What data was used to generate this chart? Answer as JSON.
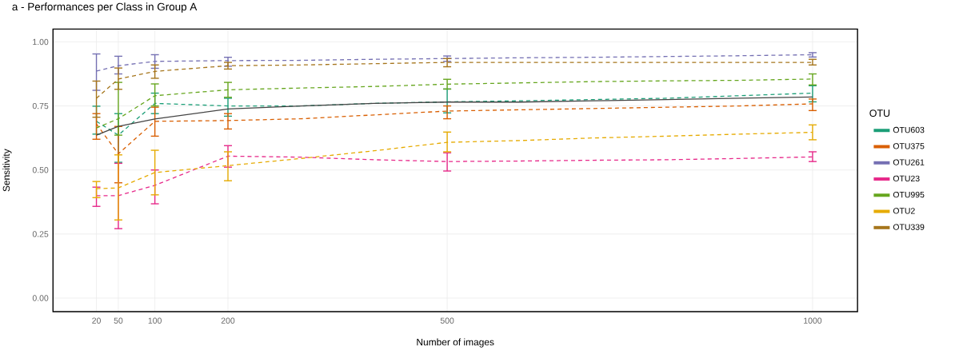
{
  "chart_data": {
    "type": "line",
    "title": "a - Performances per Class in Group A",
    "xlabel": "Number of images",
    "ylabel": "Sensitivity",
    "legend_title": "OTU",
    "x": [
      20,
      50,
      100,
      200,
      300,
      400,
      500,
      600,
      700,
      800,
      900,
      1000
    ],
    "series": [
      {
        "name": "OTU603",
        "color": "#1b9e77",
        "line_style": "dashed",
        "values": [
          0.69,
          0.636,
          0.76,
          0.75,
          0.75,
          0.76,
          0.766,
          0.77,
          0.775,
          0.78,
          0.79,
          0.8
        ],
        "errors": [
          [
            0.64,
            0.749
          ],
          [
            0.53,
            0.72
          ],
          [
            0.72,
            0.8
          ],
          [
            0.71,
            0.78
          ],
          null,
          null,
          [
            0.723,
            0.816
          ],
          null,
          null,
          null,
          null,
          [
            0.766,
            0.829
          ]
        ]
      },
      {
        "name": "OTU375",
        "color": "#d95f02",
        "line_style": "dashed",
        "values": [
          0.68,
          0.563,
          0.69,
          0.693,
          0.7,
          0.715,
          0.73,
          0.735,
          0.74,
          0.745,
          0.75,
          0.758
        ],
        "errors": [
          [
            0.62,
            0.72
          ],
          [
            0.45,
            0.67
          ],
          [
            0.632,
            0.745
          ],
          [
            0.66,
            0.72
          ],
          null,
          null,
          [
            0.7,
            0.75
          ],
          null,
          null,
          null,
          null,
          [
            0.732,
            0.777
          ]
        ]
      },
      {
        "name": "OTU261",
        "color": "#7570b3",
        "line_style": "dashed",
        "values": [
          0.886,
          0.907,
          0.924,
          0.927,
          0.928,
          0.932,
          0.935,
          0.938,
          0.94,
          0.943,
          0.946,
          0.95
        ],
        "errors": [
          [
            0.811,
            0.953
          ],
          [
            0.875,
            0.944
          ],
          [
            0.897,
            0.95
          ],
          [
            0.905,
            0.94
          ],
          null,
          null,
          [
            0.924,
            0.945
          ],
          null,
          null,
          null,
          null,
          [
            0.941,
            0.958
          ]
        ]
      },
      {
        "name": "OTU23",
        "color": "#e7298a",
        "line_style": "dashed",
        "values": [
          0.4,
          0.4,
          0.44,
          0.554,
          0.55,
          0.54,
          0.533,
          0.535,
          0.538,
          0.54,
          0.545,
          0.551
        ],
        "errors": [
          [
            0.358,
            0.433
          ],
          [
            0.271,
            0.526
          ],
          [
            0.368,
            0.5
          ],
          [
            0.511,
            0.595
          ],
          null,
          null,
          [
            0.496,
            0.567
          ],
          null,
          null,
          null,
          null,
          [
            0.533,
            0.571
          ]
        ]
      },
      {
        "name": "OTU995",
        "color": "#66a61e",
        "line_style": "dashed",
        "values": [
          0.664,
          0.7,
          0.79,
          0.813,
          0.82,
          0.826,
          0.835,
          0.84,
          0.845,
          0.848,
          0.85,
          0.855
        ],
        "errors": [
          null,
          [
            0.636,
            0.842
          ],
          [
            0.75,
            0.836
          ],
          [
            0.784,
            0.842
          ],
          null,
          null,
          [
            0.816,
            0.854
          ],
          null,
          null,
          null,
          null,
          [
            0.832,
            0.875
          ]
        ]
      },
      {
        "name": "OTU2",
        "color": "#e6ab02",
        "line_style": "dashed",
        "values": [
          0.427,
          0.43,
          0.49,
          0.517,
          0.545,
          0.575,
          0.608,
          0.615,
          0.625,
          0.632,
          0.64,
          0.647
        ],
        "errors": [
          [
            0.392,
            0.455
          ],
          [
            0.305,
            0.559
          ],
          [
            0.403,
            0.577
          ],
          [
            0.458,
            0.571
          ],
          null,
          null,
          [
            0.571,
            0.648
          ],
          null,
          null,
          null,
          null,
          [
            0.618,
            0.676
          ]
        ]
      },
      {
        "name": "OTU339",
        "color": "#a6761d",
        "line_style": "dashed",
        "values": [
          0.78,
          0.855,
          0.885,
          0.907,
          0.91,
          0.915,
          0.92,
          0.92,
          0.92,
          0.92,
          0.92,
          0.92
        ],
        "errors": [
          [
            0.706,
            0.847
          ],
          [
            0.815,
            0.898
          ],
          [
            0.858,
            0.91
          ],
          [
            0.894,
            0.92
          ],
          null,
          null,
          [
            0.903,
            0.935
          ],
          null,
          null,
          null,
          null,
          [
            0.91,
            0.932
          ]
        ]
      },
      {
        "color": "#444444",
        "line_style": "solid",
        "values": [
          0.636,
          0.67,
          0.699,
          0.738,
          0.75,
          0.76,
          0.765,
          0.765,
          0.77,
          0.775,
          0.78,
          0.785
        ]
      }
    ],
    "xlim": [
      -39.4,
      1061.5
    ],
    "ylim": [
      -0.053,
      1.05
    ],
    "xticks": [
      20,
      50,
      100,
      200,
      500,
      1000
    ],
    "yticks": [
      {
        "value": 0,
        "label": "0.00"
      },
      {
        "value": 0.25,
        "label": "0.25"
      },
      {
        "value": 0.5,
        "label": "0.50"
      },
      {
        "value": 0.75,
        "label": "0.75"
      },
      {
        "value": 1,
        "label": "1.00"
      }
    ],
    "grid": true,
    "legend": "right",
    "marker": "none"
  }
}
